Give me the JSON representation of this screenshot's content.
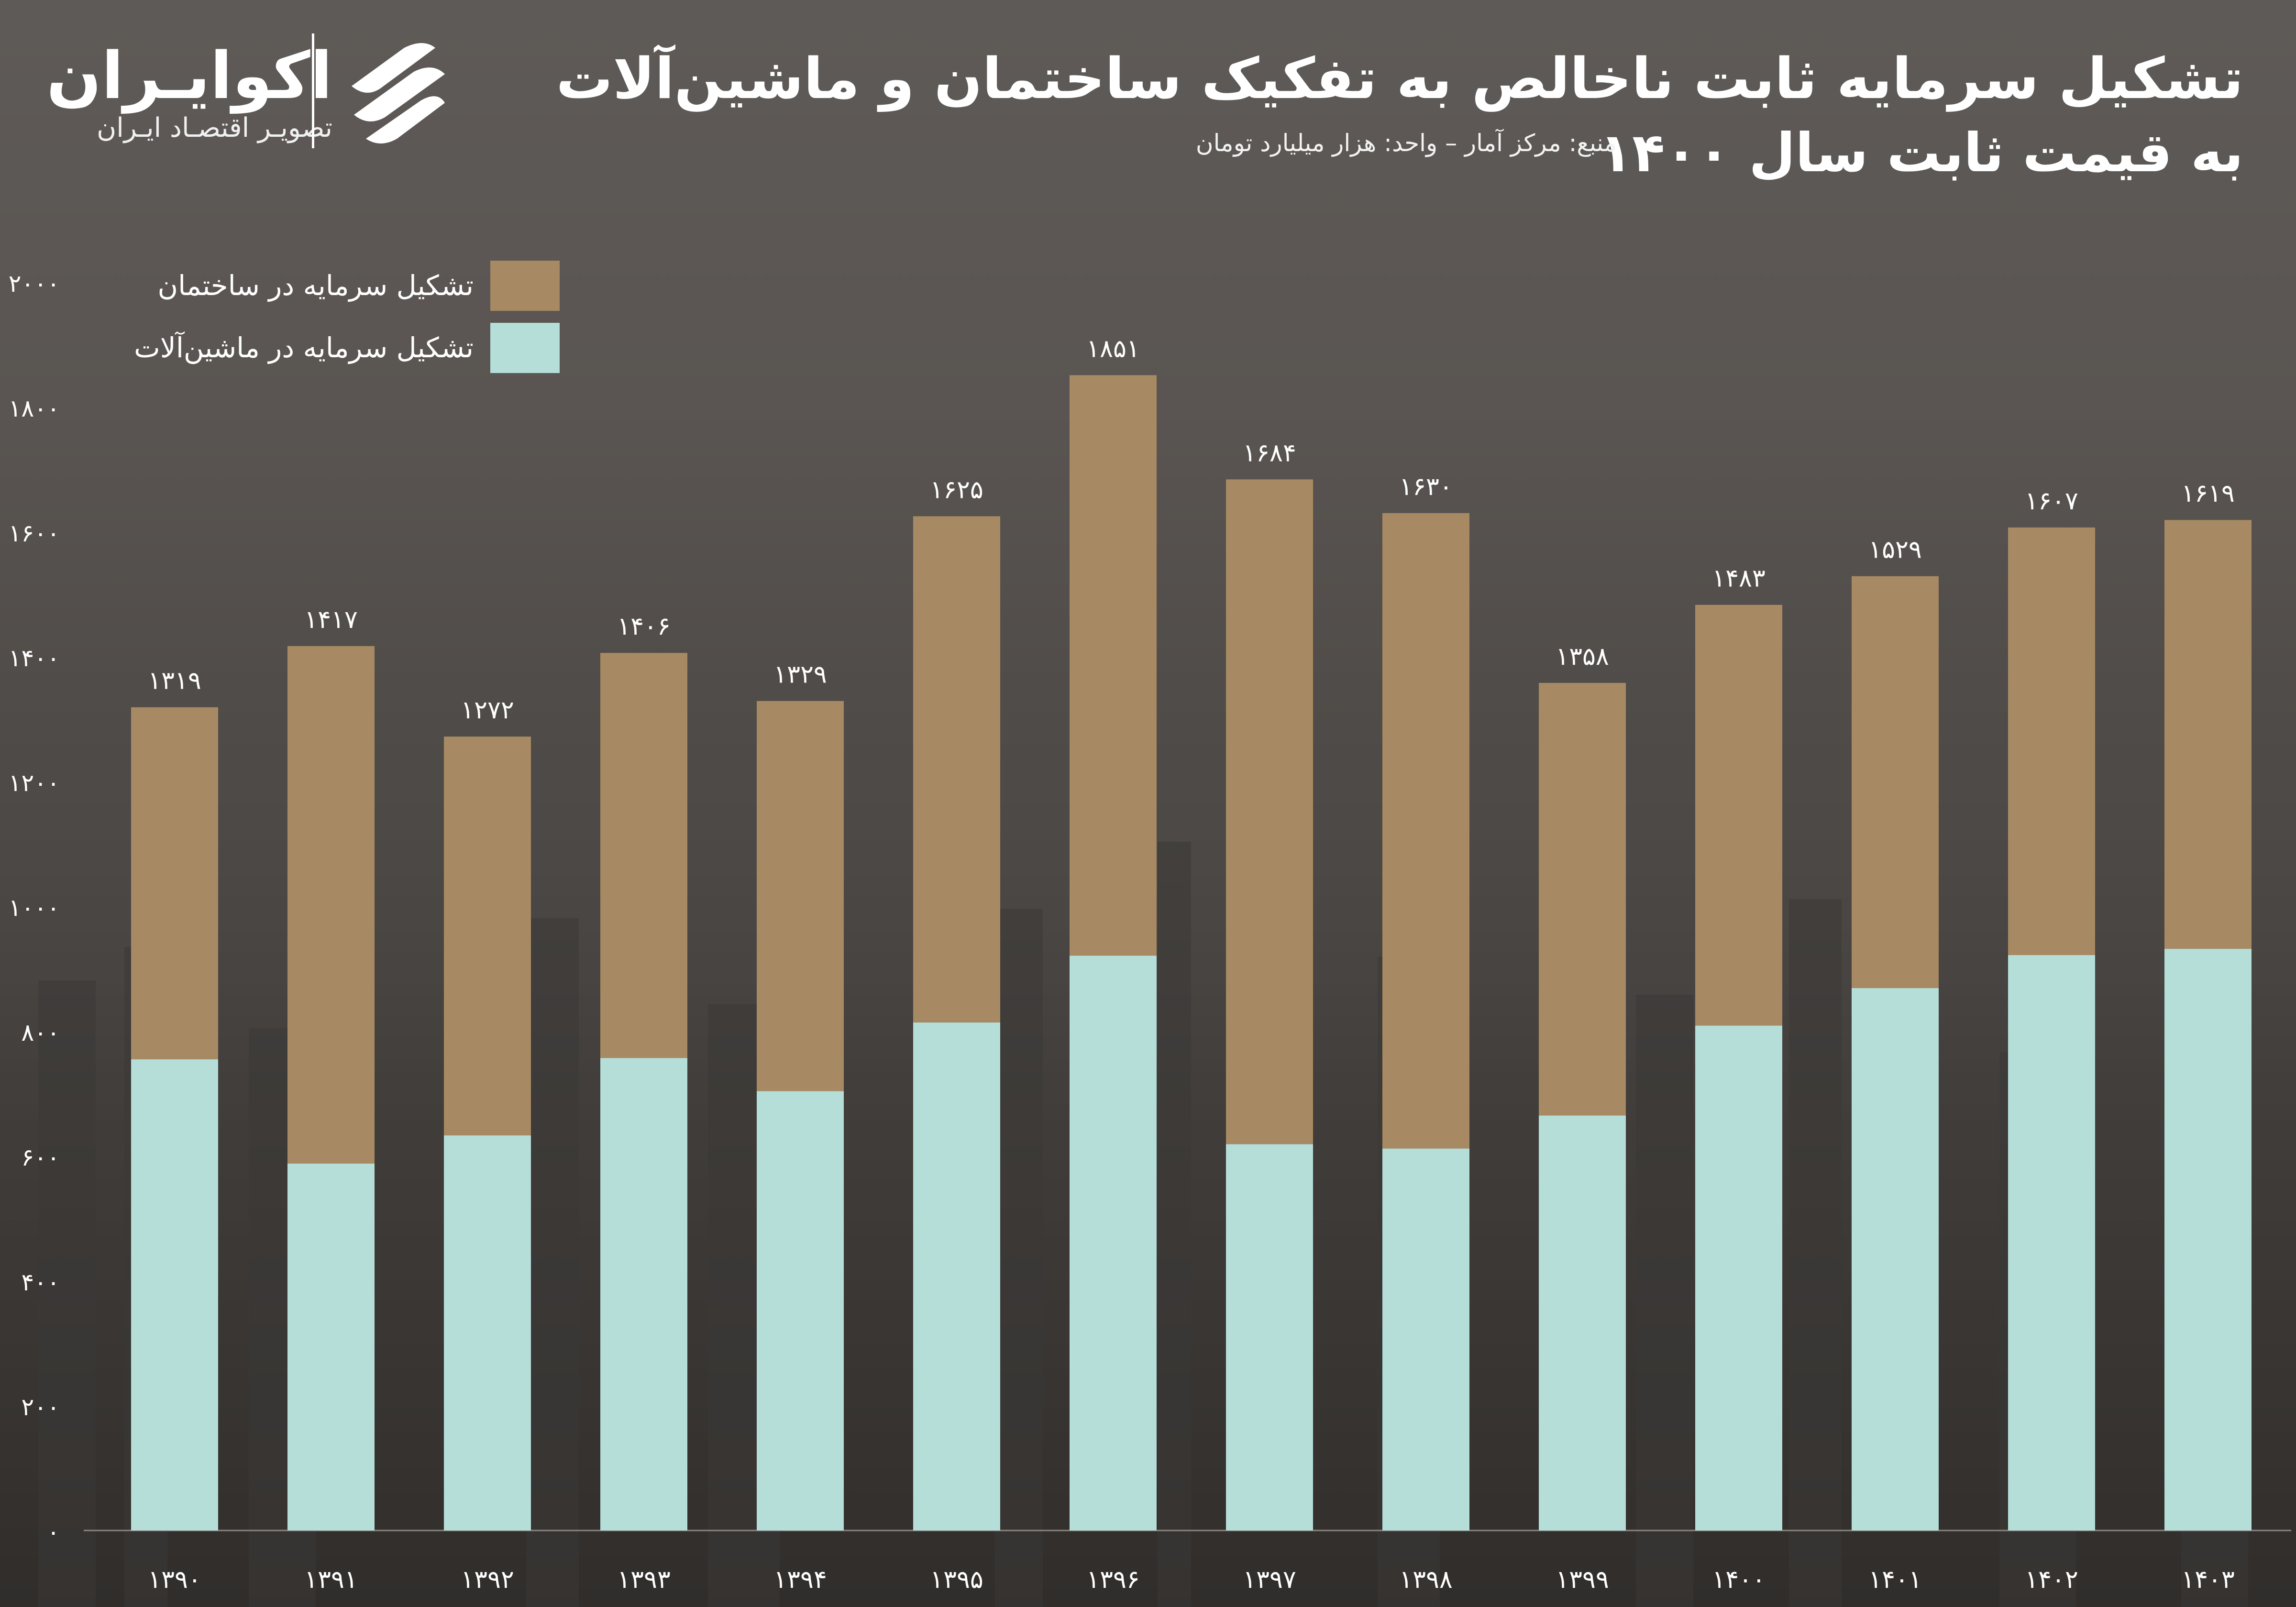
{
  "header": {
    "title_line1": "تشکیل سرمایه ثابت ناخالص به تفکیک ساختمان و ماشین‌آلات",
    "title_line2": "به قیمت ثابت سال ۱۴۰۰",
    "source_text": "منبع: مرکز آمار – واحد: هزار میلیارد تومان"
  },
  "brand": {
    "name": "اکوایـران",
    "tagline": "تصویـر اقتصـاد ایـران",
    "logo_icon": "stacked-swoosh-icon"
  },
  "colors": {
    "building": "#a78a63",
    "machinery": "#b6ded9",
    "axis_text": "#ffffff"
  },
  "chart_data": {
    "type": "bar",
    "stacked": true,
    "categories": [
      "۱۳۹۰",
      "۱۳۹۱",
      "۱۳۹۲",
      "۱۳۹۳",
      "۱۳۹۴",
      "۱۳۹۵",
      "۱۳۹۶",
      "۱۳۹۷",
      "۱۳۹۸",
      "۱۳۹۹",
      "۱۴۰۰",
      "۱۴۰۱",
      "۱۴۰۲",
      "۱۴۰۳"
    ],
    "series": [
      {
        "name": "تشکیل سرمایه در ماشین‌آلات",
        "values": [
          755,
          588,
          633,
          757,
          704,
          814,
          921,
          619,
          612,
          665,
          809,
          869,
          922,
          932
        ]
      },
      {
        "name": "تشکیل سرمایه در ساختمان",
        "values": [
          564,
          829,
          639,
          649,
          625,
          811,
          930,
          1065,
          1018,
          693,
          674,
          660,
          685,
          687
        ]
      }
    ],
    "totals": [
      1319,
      1417,
      1272,
      1406,
      1329,
      1625,
      1851,
      1684,
      1630,
      1358,
      1483,
      1529,
      1607,
      1619
    ],
    "total_labels": [
      "۱۳۱۹",
      "۱۴۱۷",
      "۱۲۷۲",
      "۱۴۰۶",
      "۱۳۲۹",
      "۱۶۲۵",
      "۱۸۵۱",
      "۱۶۸۴",
      "۱۶۳۰",
      "۱۳۵۸",
      "۱۴۸۳",
      "۱۵۲۹",
      "۱۶۰۷",
      "۱۶۱۹"
    ],
    "ylim": [
      0,
      2000
    ],
    "y_ticks": [
      0,
      200,
      400,
      600,
      800,
      1000,
      1200,
      1400,
      1600,
      1800,
      2000
    ],
    "y_tick_labels": [
      "۰",
      "۲۰۰",
      "۴۰۰",
      "۶۰۰",
      "۸۰۰",
      "۱۰۰۰",
      "۱۲۰۰",
      "۱۴۰۰",
      "۱۶۰۰",
      "۱۸۰۰",
      "۲۰۰۰"
    ],
    "legend": [
      {
        "label": "تشکیل سرمایه در ساختمان",
        "series": "building"
      },
      {
        "label": "تشکیل سرمایه در ماشین‌آلات",
        "series": "machinery"
      }
    ],
    "legend_position": "top-left",
    "grid": false,
    "title": "",
    "xlabel": "",
    "ylabel": ""
  }
}
